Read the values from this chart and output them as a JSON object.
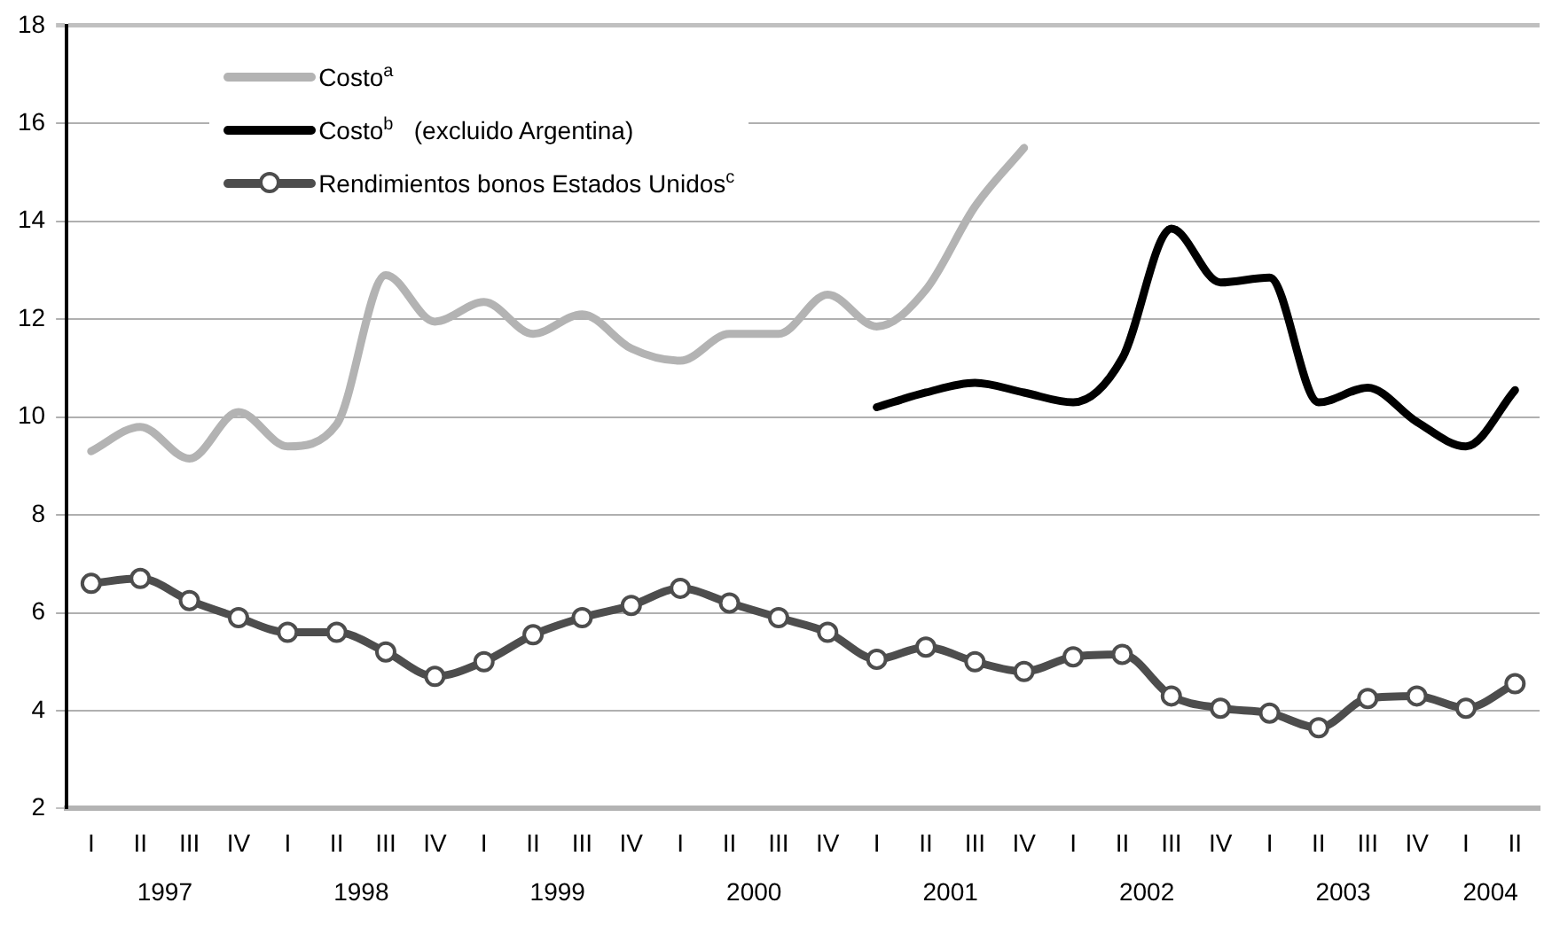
{
  "chart_data": {
    "type": "line",
    "categories": [
      "I",
      "II",
      "III",
      "IV",
      "I",
      "II",
      "III",
      "IV",
      "I",
      "II",
      "III",
      "IV",
      "I",
      "II",
      "III",
      "IV",
      "I",
      "II",
      "III",
      "IV",
      "I",
      "II",
      "III",
      "IV",
      "I",
      "II",
      "III",
      "IV",
      "I",
      "II"
    ],
    "series": [
      {
        "name": "Costo$^{a}$",
        "color": "#b3b3b3",
        "marker": "none",
        "values": [
          9.3,
          9.8,
          9.15,
          10.1,
          9.4,
          9.85,
          12.9,
          11.95,
          12.35,
          11.7,
          12.1,
          11.4,
          11.15,
          11.7,
          11.7,
          12.5,
          11.85,
          12.6,
          14.3,
          15.5,
          null,
          null,
          null,
          null,
          null,
          null,
          null,
          null,
          null,
          null
        ]
      },
      {
        "name": "Costo$^{b}$   (excluido Argentina)",
        "color": "#000000",
        "marker": "none",
        "values": [
          null,
          null,
          null,
          null,
          null,
          null,
          null,
          null,
          null,
          null,
          null,
          null,
          null,
          null,
          null,
          null,
          10.2,
          10.5,
          10.7,
          10.5,
          10.3,
          11.2,
          13.85,
          12.75,
          12.85,
          10.3,
          10.6,
          9.9,
          9.4,
          10.55
        ]
      },
      {
        "name": "Rendimientos bonos Estados Unidos$^{c}$",
        "color": "#4d4d4d",
        "marker": "circle",
        "values": [
          6.6,
          6.7,
          6.25,
          5.9,
          5.6,
          5.6,
          5.2,
          4.7,
          5.0,
          5.55,
          5.9,
          6.15,
          6.5,
          6.2,
          5.9,
          5.6,
          5.05,
          5.3,
          5.0,
          4.8,
          5.1,
          5.15,
          4.3,
          4.05,
          3.95,
          3.65,
          4.25,
          4.3,
          4.05,
          4.55
        ]
      }
    ],
    "ylim": [
      2,
      18
    ],
    "yticks": [
      2,
      4,
      6,
      8,
      10,
      12,
      14,
      16,
      18
    ],
    "grid": "y",
    "legend": "top left",
    "annotations": [
      "1997",
      "1998",
      "1999",
      "2000",
      "2001",
      "2002",
      "2003",
      "2004"
    ]
  }
}
